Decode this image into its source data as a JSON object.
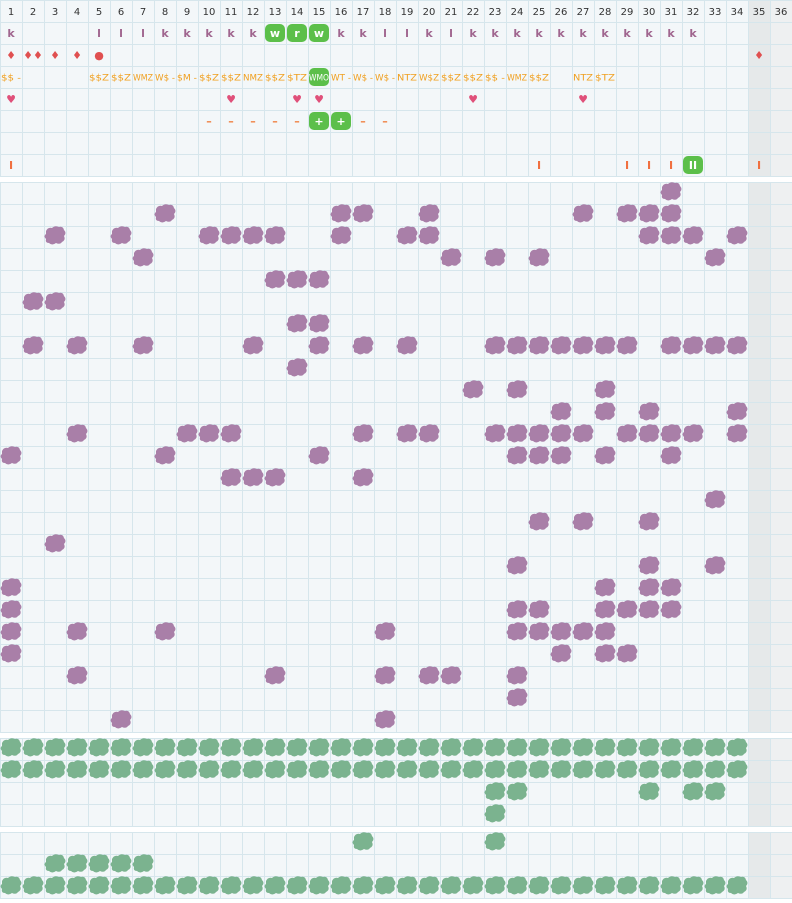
{
  "columns": [
    "1",
    "2",
    "3",
    "4",
    "5",
    "6",
    "7",
    "8",
    "9",
    "10",
    "11",
    "12",
    "13",
    "14",
    "15",
    "16",
    "17",
    "18",
    "19",
    "20",
    "21",
    "22",
    "23",
    "24",
    "25",
    "26",
    "27",
    "28",
    "29",
    "30",
    "31",
    "32",
    "33",
    "34",
    "35",
    "36"
  ],
  "shaded_columns": [
    35,
    36
  ],
  "top_rows": [
    {
      "color": "#a0668f",
      "cells": [
        {
          "col": 1,
          "text": "k"
        },
        {
          "col": 5,
          "text": "l"
        },
        {
          "col": 6,
          "text": "l"
        },
        {
          "col": 7,
          "text": "l"
        },
        {
          "col": 8,
          "text": "k"
        },
        {
          "col": 9,
          "text": "k"
        },
        {
          "col": 10,
          "text": "k"
        },
        {
          "col": 11,
          "text": "k"
        },
        {
          "col": 12,
          "text": "k"
        },
        {
          "col": 13,
          "text": "w",
          "highlight": true
        },
        {
          "col": 14,
          "text": "r",
          "highlight": true
        },
        {
          "col": 15,
          "text": "w",
          "highlight": true
        },
        {
          "col": 16,
          "text": "k"
        },
        {
          "col": 17,
          "text": "k"
        },
        {
          "col": 18,
          "text": "l"
        },
        {
          "col": 19,
          "text": "l"
        },
        {
          "col": 20,
          "text": "k"
        },
        {
          "col": 21,
          "text": "l"
        },
        {
          "col": 22,
          "text": "k"
        },
        {
          "col": 23,
          "text": "k"
        },
        {
          "col": 24,
          "text": "k"
        },
        {
          "col": 25,
          "text": "k"
        },
        {
          "col": 26,
          "text": "k"
        },
        {
          "col": 27,
          "text": "k"
        },
        {
          "col": 28,
          "text": "k"
        },
        {
          "col": 29,
          "text": "k"
        },
        {
          "col": 30,
          "text": "k"
        },
        {
          "col": 31,
          "text": "k"
        },
        {
          "col": 32,
          "text": "k"
        }
      ]
    },
    {
      "color": "#e05050",
      "cells": [
        {
          "col": 1,
          "text": "♦"
        },
        {
          "col": 2,
          "text": "♦♦"
        },
        {
          "col": 3,
          "text": "♦"
        },
        {
          "col": 4,
          "text": "♦"
        },
        {
          "col": 5,
          "text": "●"
        },
        {
          "col": 35,
          "text": "♦"
        }
      ]
    },
    {
      "color": "#f0a020",
      "cells": [
        {
          "col": 1,
          "text": "$$ -"
        },
        {
          "col": 5,
          "text": "$$Z"
        },
        {
          "col": 6,
          "text": "$$Z"
        },
        {
          "col": 7,
          "text": "WMZ"
        },
        {
          "col": 8,
          "text": "W$ -"
        },
        {
          "col": 9,
          "text": "$M -"
        },
        {
          "col": 10,
          "text": "$$Z"
        },
        {
          "col": 11,
          "text": "$$Z"
        },
        {
          "col": 12,
          "text": "NMZ"
        },
        {
          "col": 13,
          "text": "$$Z"
        },
        {
          "col": 14,
          "text": "$TZ"
        },
        {
          "col": 15,
          "text": "WMO",
          "highlight": true
        },
        {
          "col": 16,
          "text": "WT -"
        },
        {
          "col": 17,
          "text": "W$ -"
        },
        {
          "col": 18,
          "text": "W$ -"
        },
        {
          "col": 19,
          "text": "NTZ"
        },
        {
          "col": 20,
          "text": "W$Z"
        },
        {
          "col": 21,
          "text": "$$Z"
        },
        {
          "col": 22,
          "text": "$$Z"
        },
        {
          "col": 23,
          "text": "$$ -"
        },
        {
          "col": 24,
          "text": "WMZ"
        },
        {
          "col": 25,
          "text": "$$Z"
        },
        {
          "col": 27,
          "text": "NTZ"
        },
        {
          "col": 28,
          "text": "$TZ"
        }
      ]
    },
    {
      "color": "#e0507a",
      "cells": [
        {
          "col": 1,
          "text": "♥"
        },
        {
          "col": 11,
          "text": "♥"
        },
        {
          "col": 14,
          "text": "♥"
        },
        {
          "col": 15,
          "text": "♥"
        },
        {
          "col": 22,
          "text": "♥"
        },
        {
          "col": 27,
          "text": "♥"
        }
      ]
    },
    {
      "color": "#f08040",
      "cells": [
        {
          "col": 10,
          "text": "–"
        },
        {
          "col": 11,
          "text": "–"
        },
        {
          "col": 12,
          "text": "–"
        },
        {
          "col": 13,
          "text": "–"
        },
        {
          "col": 14,
          "text": "–"
        },
        {
          "col": 15,
          "text": "+",
          "highlight": true
        },
        {
          "col": 16,
          "text": "+",
          "highlight": true
        },
        {
          "col": 17,
          "text": "–"
        },
        {
          "col": 18,
          "text": "–"
        }
      ]
    },
    {
      "color": "#f08040",
      "cells": []
    },
    {
      "color": "#f07040",
      "cells": [
        {
          "col": 1,
          "text": "I"
        },
        {
          "col": 25,
          "text": "I"
        },
        {
          "col": 29,
          "text": "I"
        },
        {
          "col": 30,
          "text": "I"
        },
        {
          "col": 31,
          "text": "I"
        },
        {
          "col": 32,
          "text": "II",
          "highlight": true
        },
        {
          "col": 35,
          "text": "I"
        }
      ]
    }
  ],
  "sections": [
    {
      "color": "#a97fa8",
      "rows": [
        [
          31
        ],
        [
          8,
          16,
          17,
          20,
          27,
          29,
          30,
          31
        ],
        [
          3,
          6,
          10,
          11,
          12,
          13,
          16,
          19,
          20,
          30,
          31,
          32,
          34
        ],
        [
          7,
          21,
          23,
          25,
          33
        ],
        [
          13,
          14,
          15
        ],
        [
          2,
          3
        ],
        [
          14,
          15
        ],
        [
          2,
          4,
          7,
          12,
          15,
          17,
          19,
          23,
          24,
          25,
          26,
          27,
          28,
          29,
          31,
          32,
          33,
          34
        ],
        [
          14
        ],
        [
          22,
          24,
          28
        ],
        [
          26,
          28,
          30,
          34
        ],
        [
          4,
          9,
          10,
          11,
          17,
          19,
          20,
          23,
          24,
          25,
          26,
          27,
          29,
          30,
          31,
          32,
          34
        ],
        [
          1,
          8,
          15,
          24,
          25,
          26,
          28,
          31
        ],
        [
          11,
          12,
          13,
          17
        ],
        [
          33
        ],
        [
          25,
          27,
          30
        ],
        [
          3
        ],
        [
          24,
          30,
          33
        ],
        [
          1,
          28,
          30,
          31
        ],
        [
          1,
          24,
          25,
          28,
          29,
          30,
          31
        ],
        [
          1,
          4,
          8,
          18,
          24,
          25,
          26,
          27,
          28
        ],
        [
          1,
          26,
          28,
          29
        ],
        [
          4,
          13,
          18,
          20,
          21,
          24
        ],
        [
          24
        ],
        [
          6,
          18
        ]
      ]
    },
    {
      "color": "#7bb38f",
      "rows": [
        [
          1,
          2,
          3,
          4,
          5,
          6,
          7,
          8,
          9,
          10,
          11,
          12,
          13,
          14,
          15,
          16,
          17,
          18,
          19,
          20,
          21,
          22,
          23,
          24,
          25,
          26,
          27,
          28,
          29,
          30,
          31,
          32,
          33,
          34
        ],
        [
          1,
          2,
          3,
          4,
          5,
          6,
          7,
          8,
          9,
          10,
          11,
          12,
          13,
          14,
          15,
          16,
          17,
          18,
          19,
          20,
          21,
          22,
          23,
          24,
          25,
          26,
          27,
          28,
          29,
          30,
          31,
          32,
          33,
          34
        ],
        [
          23,
          24,
          30,
          32,
          33
        ],
        [
          23
        ]
      ]
    },
    {
      "color": "#7bb38f",
      "rows": [
        [
          17,
          23
        ],
        [
          3,
          4,
          5,
          6,
          7
        ],
        [
          1,
          2,
          3,
          4,
          5,
          6,
          7,
          8,
          9,
          10,
          11,
          12,
          13,
          14,
          15,
          16,
          17,
          18,
          19,
          20,
          21,
          22,
          23,
          24,
          25,
          26,
          27,
          28,
          29,
          30,
          31,
          32,
          33,
          34
        ]
      ]
    }
  ]
}
